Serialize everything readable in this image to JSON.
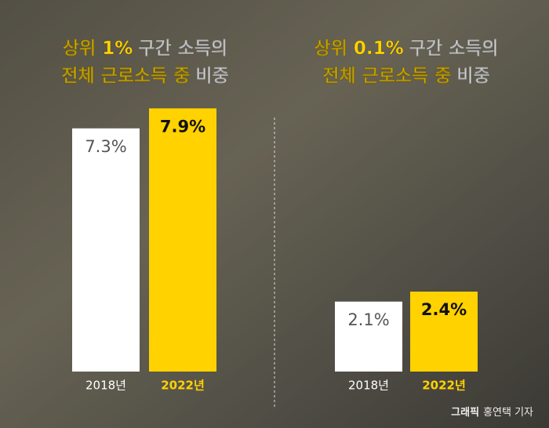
{
  "chart_data": [
    {
      "type": "bar",
      "title_lines": [
        {
          "highlight": "상위 1%",
          "rest": "구간 소득의"
        },
        {
          "highlight": "전체 근로소득 중",
          "rest": "비중"
        }
      ],
      "categories": [
        "2018년",
        "2022년"
      ],
      "values": [
        7.3,
        7.9
      ],
      "value_labels": [
        "7.3%",
        "7.9%"
      ],
      "colors": [
        "#ffffff",
        "#ffd200"
      ]
    },
    {
      "type": "bar",
      "title_lines": [
        {
          "highlight": "상위 0.1%",
          "rest": "구간 소득의"
        },
        {
          "highlight": "전체 근로소득 중",
          "rest": "비중"
        }
      ],
      "categories": [
        "2018년",
        "2022년"
      ],
      "values": [
        2.1,
        2.4
      ],
      "value_labels": [
        "2.1%",
        "2.4%"
      ],
      "colors": [
        "#ffffff",
        "#ffd200"
      ]
    }
  ],
  "credit": {
    "role": "그래픽",
    "name": "홍연택 기자"
  }
}
